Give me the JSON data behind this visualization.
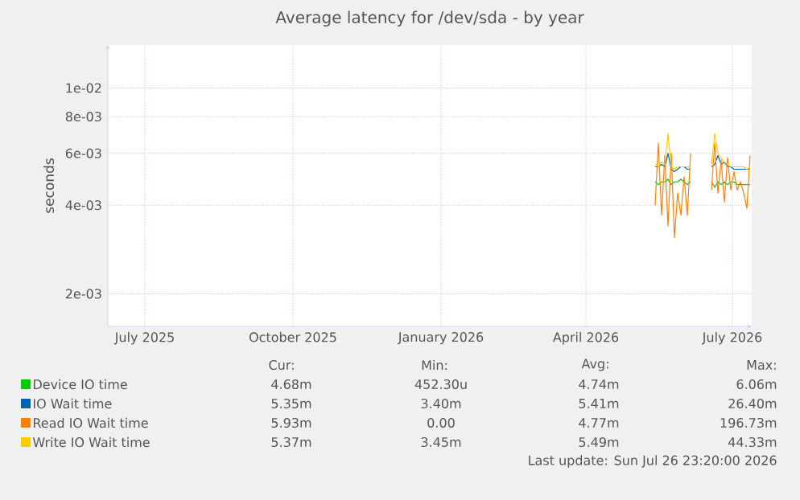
{
  "chart_data": {
    "type": "line",
    "title": "Average latency for /dev/sda - by year",
    "ylabel": "seconds",
    "log": "y",
    "grid": true,
    "legend": "bottom",
    "marker": "none",
    "line_style": "solid",
    "xlim": [
      "2025-06-08",
      "2026-07-13"
    ],
    "xticks": [
      {
        "value": "2025-07-01",
        "label": "July 2025"
      },
      {
        "value": "2025-10-01",
        "label": "October 2025"
      },
      {
        "value": "2026-01-01",
        "label": "January 2026"
      },
      {
        "value": "2026-04-01",
        "label": "April 2026"
      },
      {
        "value": "2026-07-01",
        "label": "July 2026"
      }
    ],
    "ylim": [
      0.00155,
      0.014
    ],
    "yticks": [
      {
        "value": 0.002,
        "label": "2e-03"
      },
      {
        "value": 0.004,
        "label": "4e-03"
      },
      {
        "value": 0.006,
        "label": "6e-03"
      },
      {
        "value": 0.008,
        "label": "8e-03"
      },
      {
        "value": 0.01,
        "label": "1e-02"
      }
    ],
    "x": [
      "2026-05-14",
      "2026-05-16",
      "2026-05-18",
      "2026-05-20",
      "2026-05-22",
      "2026-05-24",
      "2026-05-26",
      "2026-05-28",
      "2026-05-30",
      "2026-06-01",
      "2026-06-03",
      "2026-06-05",
      "2026-06-12",
      "2026-06-18",
      "2026-06-20",
      "2026-06-22",
      "2026-06-24",
      "2026-06-26",
      "2026-06-28",
      "2026-06-30",
      "2026-07-02",
      "2026-07-04",
      "2026-07-06",
      "2026-07-08",
      "2026-07-10",
      "2026-07-12"
    ],
    "series": [
      {
        "name": "Device IO time",
        "color": "#00cc00",
        "values": [
          0.0048,
          0.0047,
          0.0048,
          0.0048,
          0.0049,
          0.0047,
          0.0048,
          0.0048,
          0.0049,
          0.0048,
          0.0047,
          0.0048,
          null,
          0.0048,
          0.0046,
          0.0048,
          0.0047,
          0.0048,
          0.0047,
          0.0048,
          0.0048,
          0.0047,
          0.0047,
          0.0047,
          0.0047,
          0.0047
        ]
      },
      {
        "name": "IO Wait time",
        "color": "#0066b3",
        "values": [
          0.0054,
          0.0054,
          0.0055,
          0.0054,
          0.006,
          0.0053,
          0.0052,
          0.0053,
          0.0054,
          0.0054,
          0.0053,
          0.0053,
          null,
          0.0054,
          0.0055,
          0.0059,
          0.0055,
          0.0056,
          0.0054,
          0.0054,
          0.0053,
          0.0053,
          0.0053,
          0.0053,
          0.0053,
          0.0053
        ]
      },
      {
        "name": "Read IO Wait time",
        "color": "#ff8000",
        "values": [
          0.004,
          0.0065,
          0.0037,
          0.0059,
          0.0034,
          0.006,
          0.0031,
          0.0044,
          0.0037,
          0.005,
          0.0037,
          0.006,
          null,
          0.0045,
          0.0065,
          0.0044,
          0.0057,
          0.0041,
          0.0058,
          0.0045,
          0.0052,
          0.0045,
          0.0048,
          0.0044,
          0.0039,
          0.0059
        ]
      },
      {
        "name": "Write IO Wait time",
        "color": "#ffcc00",
        "values": [
          0.0055,
          0.0054,
          0.0056,
          0.0055,
          0.007,
          0.0054,
          0.0053,
          0.0054,
          0.0054,
          0.0054,
          0.0054,
          0.0054,
          null,
          0.0055,
          0.007,
          0.006,
          0.0058,
          0.0056,
          0.0055,
          0.0054,
          0.0054,
          0.0054,
          0.0054,
          0.0054,
          0.0053,
          0.0054
        ]
      }
    ],
    "annotations": [
      "Cur:",
      "Min:",
      "Avg:",
      "Max:",
      "4.68m",
      "452.30u",
      "4.74m",
      "6.06m",
      "5.35m",
      "3.40m",
      "5.41m",
      "26.40m",
      "5.93m",
      "0.00",
      "4.77m",
      "196.73m",
      "5.37m",
      "3.45m",
      "5.49m",
      "44.33m",
      "Last update: Sun Jul 26 23:20:00 2026"
    ]
  }
}
